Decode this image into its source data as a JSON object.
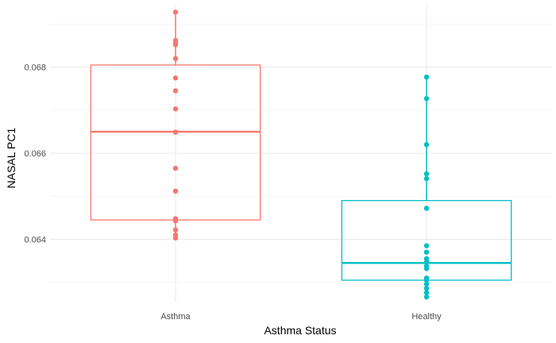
{
  "chart_data": {
    "type": "box",
    "title": "",
    "xlabel": "Asthma Status",
    "ylabel": "NASAL PC1",
    "ylim": [
      0.06255,
      0.06945
    ],
    "yticks": [
      {
        "value": 0.064,
        "label": "0.064"
      },
      {
        "value": 0.066,
        "label": "0.066"
      },
      {
        "value": 0.068,
        "label": "0.068"
      }
    ],
    "y_minor_ticks": [
      0.063,
      0.065,
      0.067,
      0.069
    ],
    "grid": true,
    "legend": "none",
    "categories": [
      "Asthma",
      "Healthy"
    ],
    "series": [
      {
        "category": "Asthma",
        "color": "#F8766D",
        "box": {
          "whisker_low": 0.06404,
          "q1": 0.06445,
          "median": 0.0665,
          "q3": 0.06805,
          "whisker_high": 0.06928
        },
        "points": [
          0.06928,
          0.06862,
          0.06856,
          0.06852,
          0.0682,
          0.06775,
          0.06745,
          0.06703,
          0.06649,
          0.06565,
          0.06512,
          0.06448,
          0.06443,
          0.06422,
          0.0641,
          0.06403
        ]
      },
      {
        "category": "Healthy",
        "color": "#00BFC4",
        "box": {
          "whisker_low": 0.06266,
          "q1": 0.06305,
          "median": 0.06345,
          "q3": 0.0649,
          "whisker_high": 0.06777
        },
        "points": [
          0.06777,
          0.06727,
          0.0662,
          0.06552,
          0.06541,
          0.06472,
          0.06385,
          0.0637,
          0.06355,
          0.06348,
          0.06338,
          0.06332,
          0.0631,
          0.06305,
          0.06296,
          0.06286,
          0.06276,
          0.06266
        ]
      }
    ]
  }
}
